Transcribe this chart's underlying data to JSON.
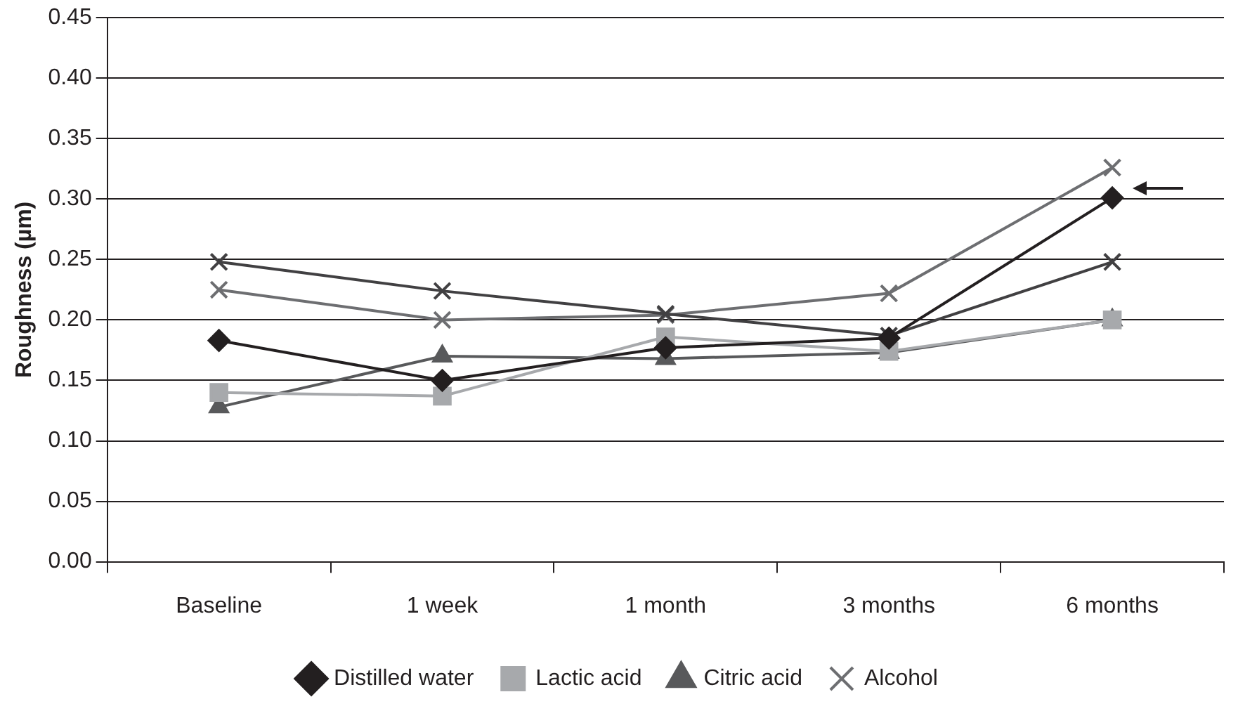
{
  "chart_data": {
    "type": "line",
    "ylabel": "Roughness (µm)",
    "categories": [
      "Baseline",
      "1 week",
      "1 month",
      "3 months",
      "6 months"
    ],
    "ylim": [
      0,
      0.45
    ],
    "yticks": [
      {
        "value": 0,
        "label": "0.00"
      },
      0.05,
      {
        "value": 0.1,
        "label": "0.10"
      },
      0.15,
      {
        "value": 0.2,
        "label": "0.20"
      },
      0.25,
      {
        "value": 0.3,
        "label": "0.30"
      },
      0.35,
      {
        "value": 0.4,
        "label": "0.40"
      },
      0.45
    ],
    "grid": "y",
    "legend": "bottom",
    "series": [
      {
        "name": "Distilled water",
        "color": "#231f20",
        "marker": "diamond",
        "values": [
          0.183,
          0.15,
          0.177,
          0.185,
          0.301
        ]
      },
      {
        "name": "Lactic acid",
        "color": "#a7a9ac",
        "marker": "square",
        "values": [
          0.14,
          0.137,
          0.186,
          0.174,
          0.2
        ]
      },
      {
        "name": "Citric acid",
        "color": "#58595b",
        "marker": "triangle",
        "values": [
          0.128,
          0.17,
          0.168,
          0.173,
          0.2
        ]
      },
      {
        "color": "#414042",
        "marker": "cross",
        "values": [
          0.248,
          0.224,
          0.205,
          0.187,
          0.248
        ]
      },
      {
        "name": "Alcohol",
        "color": "#6d6e71",
        "marker": "cross",
        "values": [
          0.225,
          0.2,
          0.204,
          0.222,
          0.326
        ]
      }
    ]
  }
}
